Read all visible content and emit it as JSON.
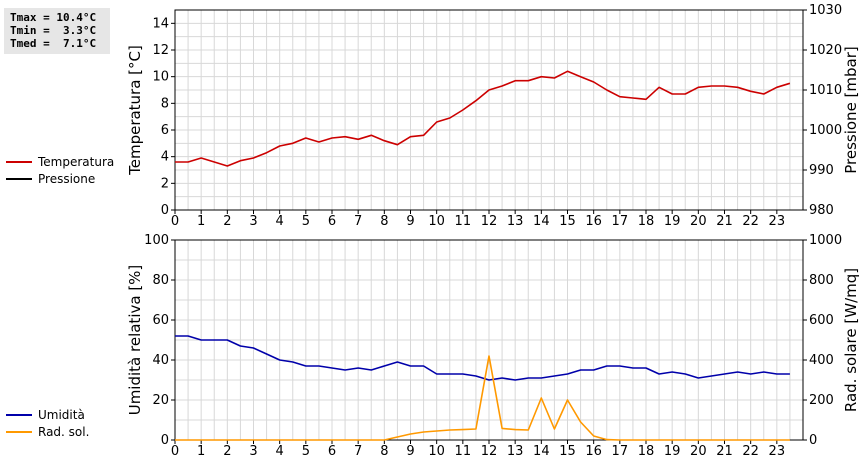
{
  "stats": {
    "tmax": "Tmax = 10.4°C",
    "tmin": "Tmin =  3.3°C",
    "tmed": "Tmed =  7.1°C"
  },
  "chart_data": [
    {
      "type": "line",
      "ylabel_left": "Temperatura [°C]",
      "ylabel_right": "Pressione [mbar]",
      "xlim": [
        0,
        24
      ],
      "ylim_left": [
        0,
        15
      ],
      "ylim_right": [
        980,
        1030
      ],
      "x_ticks": [
        0,
        1,
        2,
        3,
        4,
        5,
        6,
        7,
        8,
        9,
        10,
        11,
        12,
        13,
        14,
        15,
        16,
        17,
        18,
        19,
        20,
        21,
        22,
        23
      ],
      "y_ticks_left": [
        0,
        2,
        4,
        6,
        8,
        10,
        12,
        14
      ],
      "y_ticks_right": [
        980,
        990,
        1000,
        1010,
        1020,
        1030
      ],
      "grid": true,
      "legend": [
        "Temperatura",
        "Pressione"
      ],
      "series": [
        {
          "name": "Temperatura",
          "axis": "left",
          "color": "#cc0000",
          "x": [
            0,
            0.5,
            1,
            1.5,
            2,
            2.5,
            3,
            3.5,
            4,
            4.5,
            5,
            5.5,
            6,
            6.5,
            7,
            7.5,
            8,
            8.5,
            9,
            9.5,
            10,
            10.5,
            11,
            11.5,
            12,
            12.5,
            13,
            13.5,
            14,
            14.5,
            15,
            15.5,
            16,
            16.5,
            17,
            17.5,
            18,
            18.5,
            19,
            19.5,
            20,
            20.5,
            21,
            21.5,
            22,
            22.5,
            23,
            23.5
          ],
          "values": [
            3.6,
            3.6,
            3.9,
            3.6,
            3.3,
            3.7,
            3.9,
            4.3,
            4.8,
            5.0,
            5.4,
            5.1,
            5.4,
            5.5,
            5.3,
            5.6,
            5.2,
            4.9,
            5.5,
            5.6,
            6.6,
            6.9,
            7.5,
            8.2,
            9.0,
            9.3,
            9.7,
            9.7,
            10.0,
            9.9,
            10.4,
            10.0,
            9.6,
            9.0,
            8.5,
            8.4,
            8.3,
            9.2,
            8.7,
            8.7,
            9.2,
            9.3,
            9.3,
            9.2,
            8.9,
            8.7,
            9.2,
            9.5
          ]
        },
        {
          "name": "Pressione",
          "axis": "right",
          "color": "#000000",
          "x": [],
          "values": []
        }
      ]
    },
    {
      "type": "line",
      "ylabel_left": "Umidità relativa [%]",
      "ylabel_right": "Rad. solare [W/mq]",
      "xlim": [
        0,
        24
      ],
      "ylim_left": [
        0,
        100
      ],
      "ylim_right": [
        0,
        1000
      ],
      "x_ticks": [
        0,
        1,
        2,
        3,
        4,
        5,
        6,
        7,
        8,
        9,
        10,
        11,
        12,
        13,
        14,
        15,
        16,
        17,
        18,
        19,
        20,
        21,
        22,
        23
      ],
      "y_ticks_left": [
        0,
        20,
        40,
        60,
        80,
        100
      ],
      "y_ticks_right": [
        0,
        200,
        400,
        600,
        800,
        1000
      ],
      "grid": true,
      "legend": [
        "Umidità",
        "Rad. sol."
      ],
      "series": [
        {
          "name": "Umidità",
          "axis": "left",
          "color": "#0000aa",
          "x": [
            0,
            0.5,
            1,
            1.5,
            2,
            2.5,
            3,
            3.5,
            4,
            4.5,
            5,
            5.5,
            6,
            6.5,
            7,
            7.5,
            8,
            8.5,
            9,
            9.5,
            10,
            10.5,
            11,
            11.5,
            12,
            12.5,
            13,
            13.5,
            14,
            14.5,
            15,
            15.5,
            16,
            16.5,
            17,
            17.5,
            18,
            18.5,
            19,
            19.5,
            20,
            20.5,
            21,
            21.5,
            22,
            22.5,
            23,
            23.5
          ],
          "values": [
            52,
            52,
            50,
            50,
            50,
            47,
            46,
            43,
            40,
            39,
            37,
            37,
            36,
            35,
            36,
            35,
            37,
            39,
            37,
            37,
            33,
            33,
            33,
            32,
            30,
            31,
            30,
            31,
            31,
            32,
            33,
            35,
            35,
            37,
            37,
            36,
            36,
            33,
            34,
            33,
            31,
            32,
            33,
            34,
            33,
            34,
            33,
            33
          ]
        },
        {
          "name": "Rad. sol.",
          "axis": "right",
          "color": "#ff9900",
          "x": [
            0,
            0.5,
            1,
            1.5,
            2,
            2.5,
            3,
            3.5,
            4,
            4.5,
            5,
            5.5,
            6,
            6.5,
            7,
            7.5,
            8,
            8.5,
            9,
            9.5,
            10,
            10.5,
            11,
            11.5,
            12,
            12.5,
            13,
            13.5,
            14,
            14.5,
            15,
            15.5,
            16,
            16.5,
            17,
            17.5,
            18,
            18.5,
            19,
            19.5,
            20,
            20.5,
            21,
            21.5,
            22,
            22.5,
            23,
            23.5
          ],
          "values": [
            0,
            0,
            0,
            0,
            0,
            0,
            0,
            0,
            0,
            0,
            0,
            0,
            0,
            0,
            0,
            0,
            0,
            15,
            30,
            40,
            45,
            50,
            52,
            55,
            420,
            58,
            52,
            50,
            210,
            55,
            200,
            90,
            20,
            2,
            0,
            0,
            0,
            0,
            0,
            0,
            0,
            0,
            0,
            0,
            0,
            0,
            0,
            0
          ]
        }
      ]
    }
  ]
}
